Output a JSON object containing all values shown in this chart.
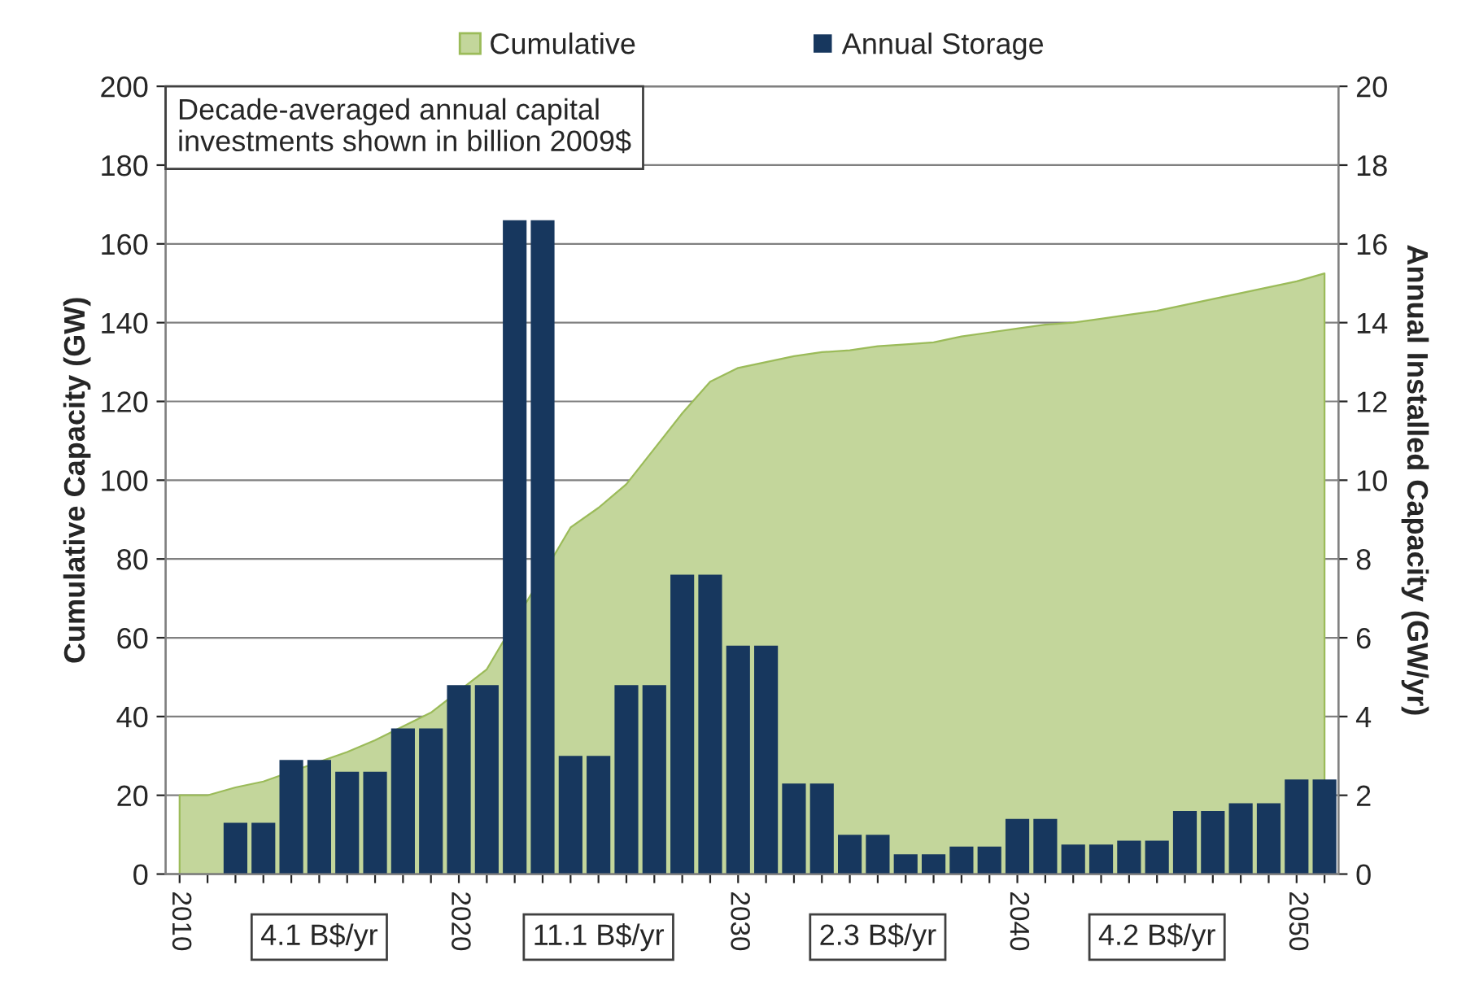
{
  "chart_data": {
    "type": "area",
    "ylabel": "Cumulative Capacity (GW)",
    "y2label": "Annual Installed Capacity (GW/yr)",
    "x": [
      2010,
      2011,
      2012,
      2013,
      2014,
      2015,
      2016,
      2017,
      2018,
      2019,
      2020,
      2021,
      2022,
      2023,
      2024,
      2025,
      2026,
      2027,
      2028,
      2029,
      2030,
      2031,
      2032,
      2033,
      2034,
      2035,
      2036,
      2037,
      2038,
      2039,
      2040,
      2041,
      2042,
      2043,
      2044,
      2045,
      2046,
      2047,
      2048,
      2049,
      2050,
      2051
    ],
    "series": [
      {
        "name": "Cumulative",
        "color": "#c3d69b",
        "values": [
          20,
          20,
          22,
          23.5,
          null,
          28.5,
          31,
          34,
          37.5,
          41,
          null,
          52,
          null,
          null,
          88,
          93,
          99,
          108,
          117,
          125,
          128.5,
          130,
          131.5,
          132.5,
          133,
          134,
          134.5,
          135,
          136.5,
          137.5,
          138.5,
          139.5,
          140,
          141,
          142,
          143,
          144.5,
          146,
          147.5,
          149,
          150.5,
          152.5
        ]
      },
      {
        "name": "Annual Storage",
        "type": "bar",
        "axis": "y2",
        "color": "#17375e",
        "values": [
          null,
          null,
          1.3,
          1.3,
          2.9,
          2.9,
          2.6,
          2.6,
          3.7,
          3.7,
          4.8,
          4.8,
          16.6,
          16.6,
          3.0,
          3.0,
          4.8,
          4.8,
          7.6,
          7.6,
          5.8,
          5.8,
          2.3,
          2.3,
          1.0,
          1.0,
          0.5,
          0.5,
          0.7,
          0.7,
          1.4,
          1.4,
          0.75,
          0.75,
          0.85,
          0.85,
          1.6,
          1.6,
          1.8,
          1.8,
          2.4,
          2.4
        ]
      }
    ],
    "xlim": [
      2009.5,
      2051.5
    ],
    "xticks": [
      {
        "value": 2010,
        "label": "2010"
      },
      {
        "value": 2011,
        "label": null
      },
      {
        "value": 2012,
        "label": null
      },
      {
        "value": 2013,
        "label": null
      },
      {
        "value": 2014,
        "label": null
      },
      {
        "value": 2015,
        "label": null
      },
      {
        "value": 2016,
        "label": null
      },
      {
        "value": 2017,
        "label": null
      },
      {
        "value": 2018,
        "label": null
      },
      {
        "value": 2019,
        "label": null
      },
      {
        "value": 2020,
        "label": "2020"
      },
      {
        "value": 2021,
        "label": null
      },
      {
        "value": 2022,
        "label": null
      },
      {
        "value": 2023,
        "label": null
      },
      {
        "value": 2024,
        "label": null
      },
      {
        "value": 2025,
        "label": null
      },
      {
        "value": 2026,
        "label": null
      },
      {
        "value": 2027,
        "label": null
      },
      {
        "value": 2028,
        "label": null
      },
      {
        "value": 2029,
        "label": null
      },
      {
        "value": 2030,
        "label": "2030"
      },
      {
        "value": 2031,
        "label": null
      },
      {
        "value": 2032,
        "label": null
      },
      {
        "value": 2033,
        "label": null
      },
      {
        "value": 2034,
        "label": null
      },
      {
        "value": 2035,
        "label": null
      },
      {
        "value": 2036,
        "label": null
      },
      {
        "value": 2037,
        "label": null
      },
      {
        "value": 2038,
        "label": null
      },
      {
        "value": 2039,
        "label": null
      },
      {
        "value": 2040,
        "label": "2040"
      },
      {
        "value": 2041,
        "label": null
      },
      {
        "value": 2042,
        "label": null
      },
      {
        "value": 2043,
        "label": null
      },
      {
        "value": 2044,
        "label": null
      },
      {
        "value": 2045,
        "label": null
      },
      {
        "value": 2046,
        "label": null
      },
      {
        "value": 2047,
        "label": null
      },
      {
        "value": 2048,
        "label": null
      },
      {
        "value": 2049,
        "label": null
      },
      {
        "value": 2050,
        "label": "2050"
      },
      {
        "value": 2051,
        "label": null
      }
    ],
    "ylim": [
      0,
      200
    ],
    "yticks": [
      0,
      20,
      40,
      60,
      80,
      100,
      120,
      140,
      160,
      180,
      200
    ],
    "y2lim": [
      0,
      20
    ],
    "y2ticks": [
      0,
      2,
      4,
      6,
      8,
      10,
      12,
      14,
      16,
      18,
      20
    ],
    "grid": "y",
    "legend": "top",
    "annotations": [
      "Decade-averaged annual capital\ninvestments shown in billion 2009$",
      "4.1 B$/yr",
      "11.1 B$/yr",
      "2.3 B$/yr",
      "4.2 B$/yr"
    ]
  }
}
